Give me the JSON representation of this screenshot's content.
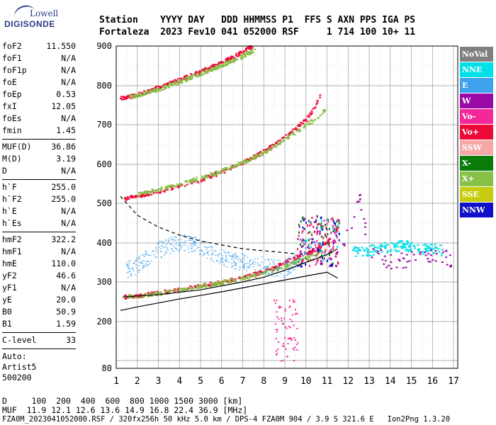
{
  "logo": {
    "line1": "Lowell",
    "line2": "DIGISONDE"
  },
  "header": {
    "row1": "Station    YYYY DAY   DDD HHMMSS P1  FFS S AXN PPS IGA PS",
    "row2": "Fortaleza  2023 Fev10 041 052000 RSF     1 714 100 10+ 11"
  },
  "params": [
    {
      "group": [
        {
          "k": "foF2",
          "v": "11.550"
        },
        {
          "k": "foF1",
          "v": "N/A"
        },
        {
          "k": "foF1p",
          "v": "N/A"
        },
        {
          "k": "foE",
          "v": "N/A"
        },
        {
          "k": "foEp",
          "v": "0.53"
        },
        {
          "k": "fxI",
          "v": "12.05"
        },
        {
          "k": "foEs",
          "v": "N/A"
        },
        {
          "k": "fmin",
          "v": "1.45"
        }
      ]
    },
    {
      "group": [
        {
          "k": "MUF(D)",
          "v": "36.86"
        },
        {
          "k": "M(D)",
          "v": "3.19"
        },
        {
          "k": "D",
          "v": "N/A"
        }
      ]
    },
    {
      "group": [
        {
          "k": "h`F",
          "v": "255.0"
        },
        {
          "k": "h`F2",
          "v": "255.0"
        },
        {
          "k": "h`E",
          "v": "N/A"
        },
        {
          "k": "h`Es",
          "v": "N/A"
        }
      ]
    },
    {
      "group": [
        {
          "k": "hmF2",
          "v": "322.2"
        },
        {
          "k": "hmF1",
          "v": "N/A"
        },
        {
          "k": "hmE",
          "v": "110.0"
        },
        {
          "k": "yF2",
          "v": "46.6"
        },
        {
          "k": "yF1",
          "v": "N/A"
        },
        {
          "k": "yE",
          "v": "20.0"
        },
        {
          "k": "B0",
          "v": "50.9"
        },
        {
          "k": "B1",
          "v": "1.59"
        }
      ]
    },
    {
      "group": [
        {
          "k": "C-level",
          "v": "33"
        }
      ]
    }
  ],
  "auto": {
    "line1": "Auto:",
    "line2": "Artist5",
    "line3": "500200"
  },
  "legend": [
    {
      "label": "NoVal",
      "color": "#808080"
    },
    {
      "label": "NNE",
      "color": "#00e0e8"
    },
    {
      "label": "E",
      "color": "#3fa2ee"
    },
    {
      "label": "W",
      "color": "#9a0aa8"
    },
    {
      "label": "Vo-",
      "color": "#f4289a"
    },
    {
      "label": "Vo+",
      "color": "#ee0a38"
    },
    {
      "label": "SSW",
      "color": "#f4a8a8"
    },
    {
      "label": "X-",
      "color": "#0a7a0a"
    },
    {
      "label": "X+",
      "color": "#88c048"
    },
    {
      "label": "SSE",
      "color": "#c8cc10"
    },
    {
      "label": "NNW",
      "color": "#1010c8"
    }
  ],
  "footer": {
    "row1": "D     100  200  400  600  800 1000 1500 3000 [km]",
    "row2": "MUF  11.9 12.1 12.6 13.6 14.9 16.8 22.4 36.9 [MHz]",
    "row3": "FZA0M_2023041052000.RSF / 320fx256h 50 kHz 5.0 km / DPS-4 FZA0M 904 / 3.9 S 321.6 E   Ion2Png 1.3.20"
  },
  "chart_data": {
    "type": "scatter",
    "title": "",
    "xlabel": "",
    "ylabel": "",
    "xlim": [
      1,
      17.2
    ],
    "ylim": [
      80,
      900
    ],
    "xticks": [
      1,
      2,
      3,
      4,
      5,
      6,
      7,
      8,
      9,
      10,
      11,
      12,
      13,
      14,
      15,
      16,
      17
    ],
    "yticks": [
      80,
      200,
      300,
      400,
      500,
      600,
      700,
      800,
      900
    ],
    "grid": true,
    "legend_position": "right",
    "traces": [
      {
        "name": "O-trace 1",
        "color_key": "Vo+",
        "x": [
          1.4,
          2,
          3,
          4,
          5,
          6,
          7,
          8,
          8.5,
          9,
          9.5,
          10,
          10.5,
          11,
          11.3,
          11.5
        ],
        "y": [
          262,
          265,
          272,
          280,
          290,
          300,
          312,
          326,
          336,
          350,
          362,
          372,
          385,
          400,
          418,
          440
        ]
      },
      {
        "name": "O-trace 2",
        "color_key": "Vo+",
        "x": [
          1.4,
          2,
          3,
          4,
          5,
          6,
          7,
          8,
          9,
          9.5,
          10,
          10.4,
          10.7
        ],
        "y": [
          512,
          518,
          530,
          545,
          560,
          580,
          605,
          632,
          668,
          690,
          712,
          745,
          780
        ]
      },
      {
        "name": "O-trace 3",
        "color_key": "Vo+",
        "x": [
          1.2,
          2,
          3,
          4,
          5,
          6,
          7,
          7.5
        ],
        "y": [
          767,
          776,
          795,
          815,
          835,
          858,
          885,
          900
        ]
      },
      {
        "name": "X-trace 1",
        "color_key": "X+",
        "x": [
          1.5,
          3,
          5,
          7,
          8,
          9,
          10,
          10.8
        ],
        "y": [
          262,
          270,
          288,
          308,
          322,
          340,
          362,
          378
        ]
      },
      {
        "name": "X-trace 2",
        "color_key": "X+",
        "x": [
          2,
          4,
          6,
          8,
          9.5,
          10.6,
          10.9
        ],
        "y": [
          522,
          548,
          582,
          628,
          680,
          720,
          740
        ]
      },
      {
        "name": "X-trace 3",
        "color_key": "X+",
        "x": [
          1.6,
          3,
          5,
          6.5,
          7.6
        ],
        "y": [
          770,
          790,
          830,
          862,
          890
        ]
      },
      {
        "name": "E-spread",
        "color_key": "E",
        "x": [
          1.5,
          2,
          3,
          4,
          5,
          6,
          7,
          8,
          9,
          10
        ],
        "y": [
          330,
          340,
          380,
          400,
          390,
          360,
          350,
          340,
          330,
          380
        ]
      },
      {
        "name": "NNE-cluster",
        "color_key": "NNE",
        "x": [
          12.2,
          13,
          13.5,
          14,
          14.5,
          15,
          15.5,
          16.5
        ],
        "y": [
          375,
          380,
          385,
          390,
          392,
          390,
          385,
          380
        ]
      },
      {
        "name": "W-scatter",
        "color_key": "W",
        "x": [
          11,
          11.5,
          12,
          12.3,
          12.5,
          13,
          14,
          15,
          16.5,
          16.9
        ],
        "y": [
          340,
          360,
          420,
          480,
          520,
          380,
          350,
          360,
          370,
          350
        ]
      }
    ],
    "lines": [
      {
        "name": "profile",
        "style": "solid",
        "x": [
          1.2,
          2,
          3,
          4,
          5,
          6,
          7,
          8,
          9,
          10,
          11,
          11.5
        ],
        "y": [
          228,
          237,
          247,
          257,
          266,
          275,
          285,
          295,
          305,
          315,
          325,
          310
        ]
      },
      {
        "name": "profile-dashed",
        "style": "dashed",
        "x": [
          1.2,
          2,
          3,
          4,
          5,
          6,
          7,
          8,
          9,
          9.5
        ],
        "y": [
          518,
          470,
          440,
          420,
          405,
          395,
          385,
          380,
          375,
          372
        ]
      },
      {
        "name": "model",
        "style": "solid",
        "x": [
          1.3,
          3,
          5,
          7,
          8,
          9,
          10,
          11,
          11.5
        ],
        "y": [
          262,
          268,
          280,
          300,
          312,
          330,
          350,
          370,
          385
        ]
      }
    ]
  }
}
